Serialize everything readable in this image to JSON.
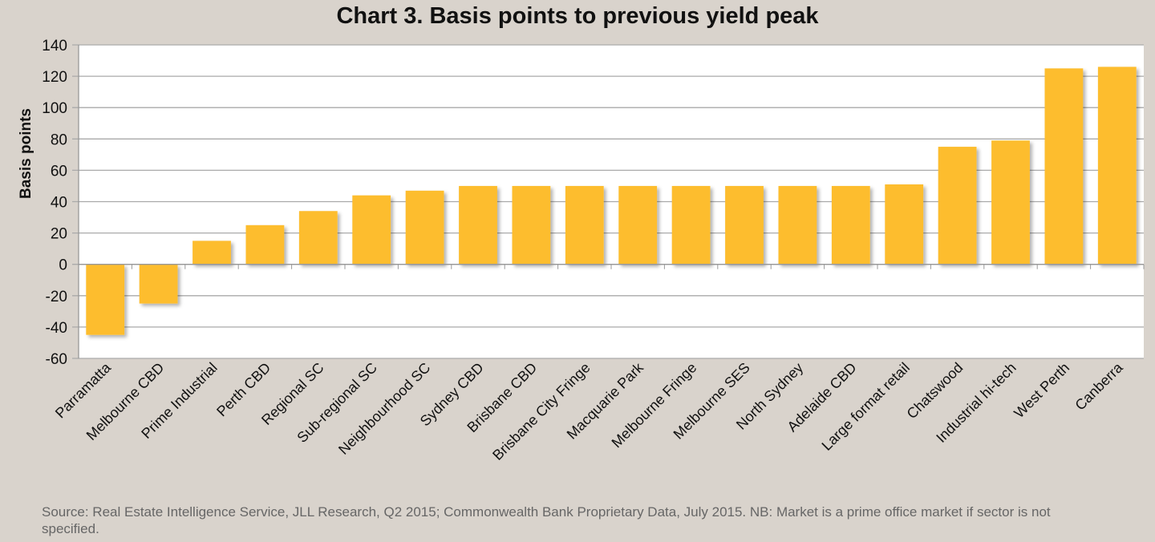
{
  "chart_data": {
    "type": "bar",
    "title": "Chart 3. Basis points to previous yield peak",
    "xlabel": "",
    "ylabel": "Basis points",
    "ylim": [
      -60,
      140
    ],
    "yticks": [
      140,
      120,
      100,
      80,
      60,
      40,
      20,
      0,
      -20,
      -40,
      -60
    ],
    "grid": true,
    "bar_color": "#fdbd2e",
    "categories": [
      "Parramatta",
      "Melbourne CBD",
      "Prime Industrial",
      "Perth CBD",
      "Regional SC",
      "Sub-regional SC",
      "Neighbourhood SC",
      "Sydney CBD",
      "Brisbane CBD",
      "Brisbane City Fringe",
      "Macquarie Park",
      "Melbourne Fringe",
      "Melbourne SES",
      "North Sydney",
      "Adelaide CBD",
      "Large format retail",
      "Chatswood",
      "Industrial hi-tech",
      "West Perth",
      "Canberra"
    ],
    "values": [
      -45,
      -25,
      15,
      25,
      34,
      44,
      47,
      50,
      50,
      50,
      50,
      50,
      50,
      50,
      50,
      51,
      75,
      79,
      125,
      126
    ]
  },
  "source": "Source: Real Estate Intelligence Service, JLL Research, Q2 2015; Commonwealth Bank Proprietary Data, July 2015. NB:  Market is a prime office market if sector is not specified."
}
